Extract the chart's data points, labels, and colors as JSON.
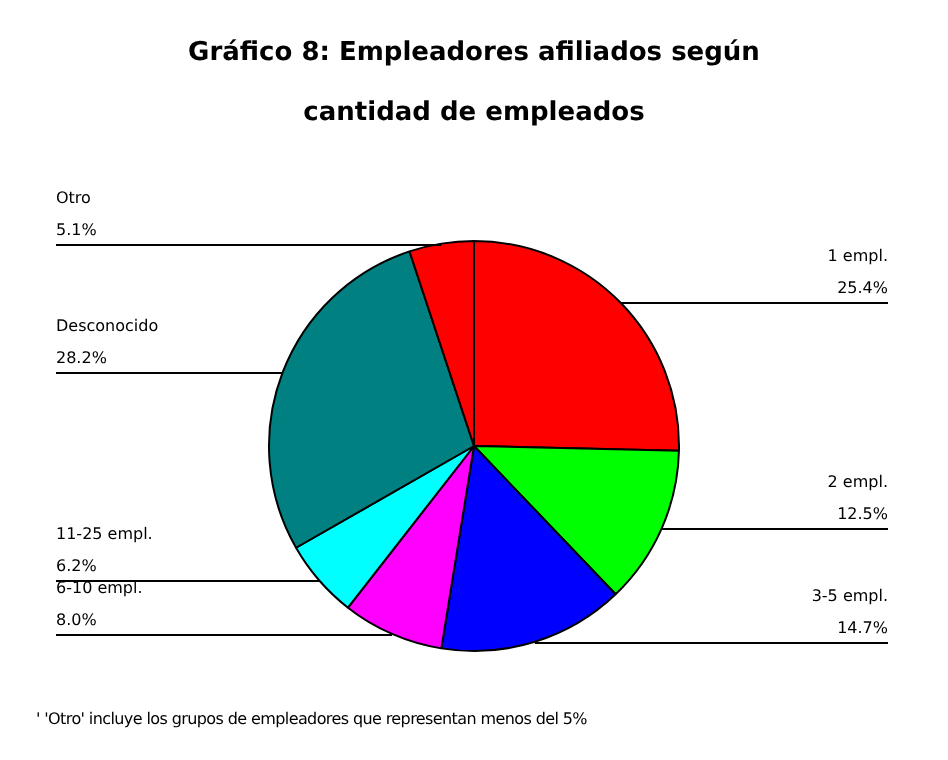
{
  "chart_data": {
    "type": "pie",
    "title": "Gráfico 8: Empleadores afiliados según cantidad de empleados",
    "categories": [
      "1 empl.",
      "2 empl.",
      "3-5 empl.",
      "6-10 empl.",
      "11-25 empl.",
      "Desconocido",
      "Otro"
    ],
    "values": [
      25.4,
      12.5,
      14.7,
      8.0,
      6.2,
      28.2,
      5.1
    ],
    "value_labels": [
      "25.4%",
      "12.5%",
      "14.7%",
      "8.0%",
      "6.2%",
      "28.2%",
      "5.1%"
    ],
    "colors": [
      "#ff0000",
      "#00ff00",
      "#0000ff",
      "#ff00ff",
      "#00ffff",
      "#008080",
      "#ff0000"
    ],
    "legend": false,
    "annotations": [
      "' 'Otro' incluye los grupos de empleadores que representan menos del 5%"
    ]
  }
}
